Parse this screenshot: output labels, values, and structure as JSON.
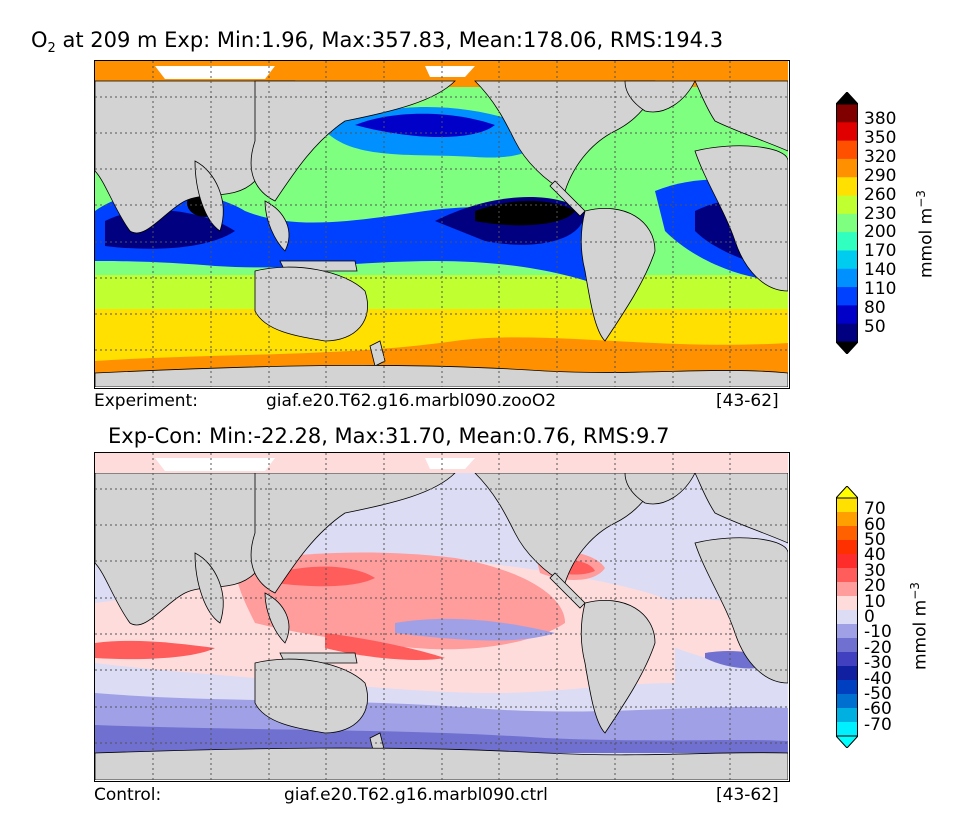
{
  "panel_top": {
    "title_species": "O",
    "title_sub": "2",
    "title_rest": " at 209 m Exp: Min:1.96, Max:357.83, Mean:178.06, RMS:194.3",
    "caption_left": "Experiment:",
    "caption_mid": "giaf.e20.T62.g16.marbl090.zooO2",
    "caption_right": "[43-62]",
    "colorbar": {
      "label": "mmol m",
      "label_exp": "−3",
      "ticks": [
        "380",
        "350",
        "320",
        "290",
        "260",
        "230",
        "200",
        "170",
        "140",
        "110",
        "80",
        "50"
      ],
      "colors": [
        "#000080",
        "#0000c8",
        "#0040ff",
        "#0090ff",
        "#00ccf0",
        "#30ffc0",
        "#7fff7f",
        "#c0ff30",
        "#ffe000",
        "#ff9000",
        "#ff5000",
        "#e00000",
        "#800000"
      ],
      "extend_low": "#000000",
      "extend_high": "#000000"
    }
  },
  "panel_bottom": {
    "title": "Exp-Con: Min:-22.28, Max:31.70, Mean:0.76, RMS:9.7",
    "caption_left": "Control:",
    "caption_mid": "giaf.e20.T62.g16.marbl090.ctrl",
    "caption_right": "[43-62]",
    "colorbar": {
      "label": "mmol m",
      "label_exp": "−3",
      "ticks": [
        "70",
        "60",
        "50",
        "40",
        "30",
        "20",
        "10",
        "0",
        "-10",
        "-20",
        "-30",
        "-40",
        "-50",
        "-60",
        "-70"
      ],
      "colors": [
        "#00f0ff",
        "#00b0e0",
        "#0070d0",
        "#0040c0",
        "#1020a0",
        "#4040c0",
        "#7070d0",
        "#a0a0e6",
        "#dcdcf4",
        "#ffdcdc",
        "#ff9c9c",
        "#ff5c5c",
        "#ff2c2c",
        "#ff3000",
        "#ff6000",
        "#ffa000",
        "#ffe000"
      ],
      "extend_low": "#00ffff",
      "extend_high": "#ffff00"
    }
  },
  "colors": {
    "land": "#d3d3d3",
    "ice": "#ffffff",
    "grid": "#555555"
  }
}
